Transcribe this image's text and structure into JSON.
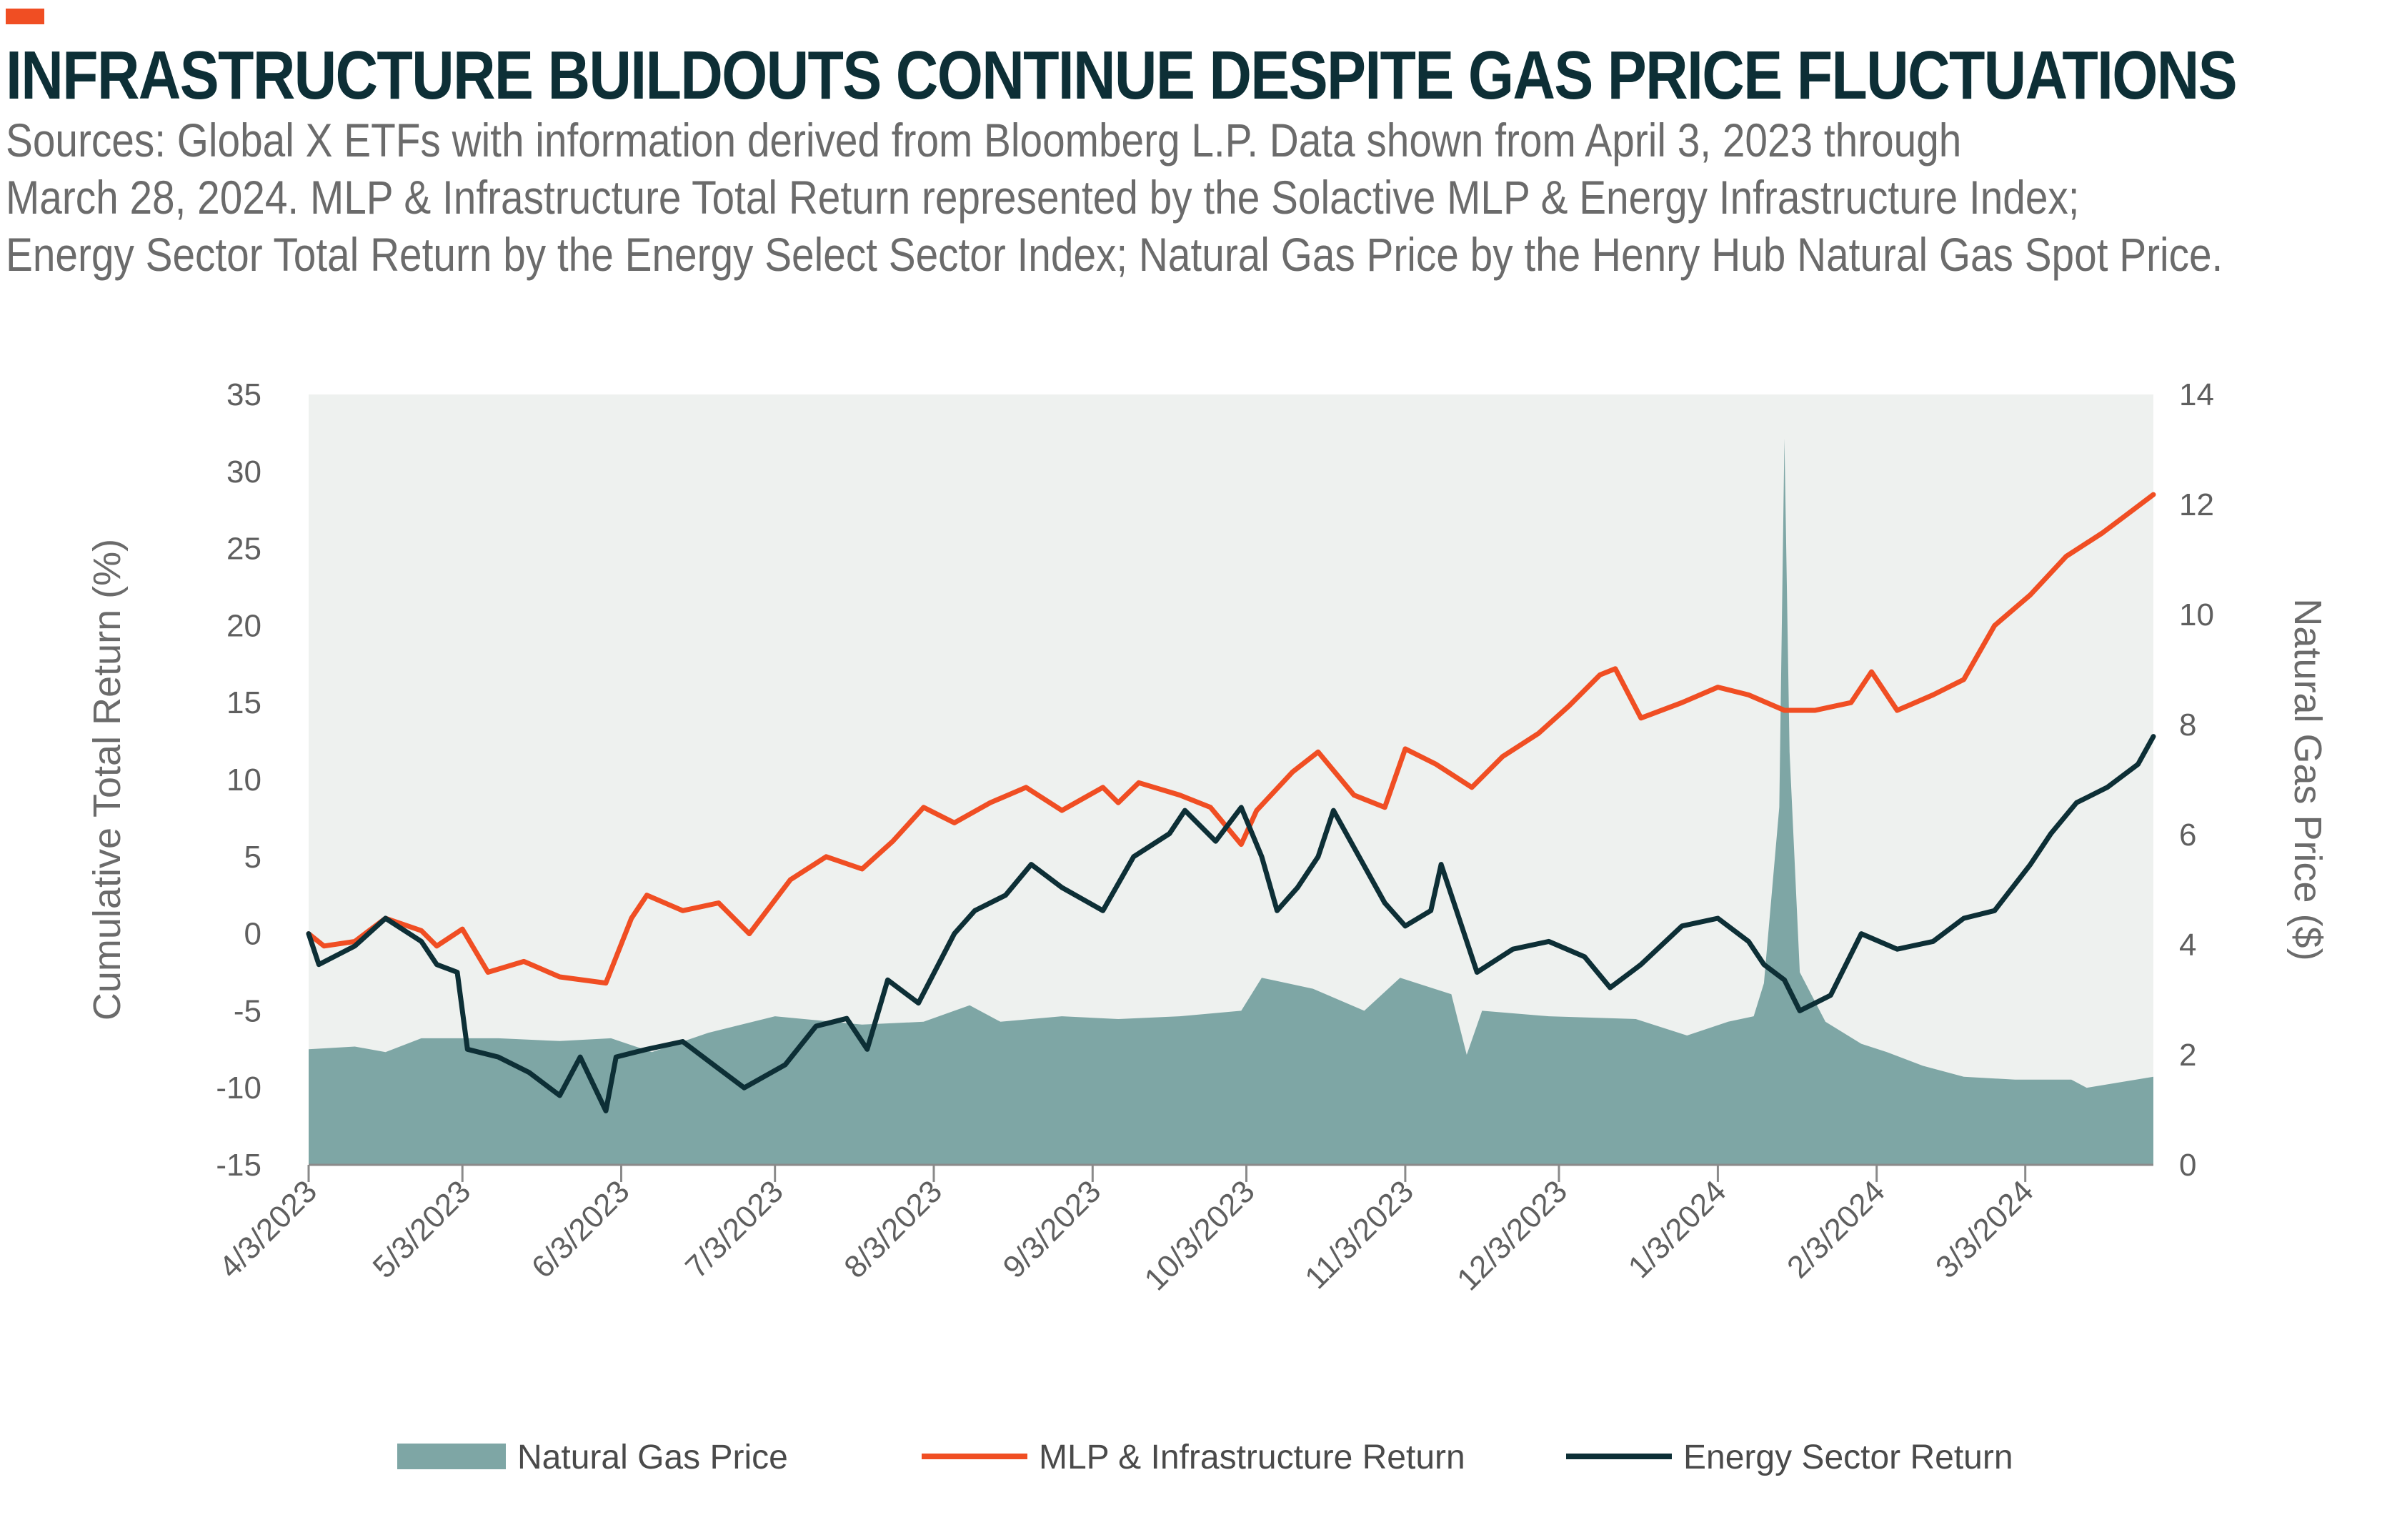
{
  "header": {
    "title": "INFRASTRUCTURE BUILDOUTS CONTINUE DESPITE GAS PRICE FLUCTUATIONS",
    "subtitle_lines": [
      "Sources: Global X ETFs with information derived from Bloomberg L.P. Data shown from April 3, 2023 through",
      "March 28, 2024. MLP & Infrastructure Total Return represented by the Solactive MLP & Energy Infrastructure Index;",
      "Energy Sector Total Return by the Energy Select Sector Index; Natural Gas Price by the Henry Hub Natural Gas Spot Price."
    ]
  },
  "colors": {
    "accent": "#f04e23",
    "title": "#0d2f36",
    "plot_background": "#eef1ef",
    "natural_gas": "#7ea6a5",
    "mlp": "#f04e23",
    "energy": "#0d2f36"
  },
  "chart_data": {
    "type": "line",
    "title": "INFRASTRUCTURE BUILDOUTS CONTINUE DESPITE GAS PRICE FLUCTUATIONS",
    "xlabel": "",
    "ylabel": "Cumulative Total Return (%)",
    "y2label": "Natural Gas Price ($)",
    "ylim": [
      -15,
      35
    ],
    "y2lim": [
      0,
      14
    ],
    "yticks": [
      "35",
      "30",
      "25",
      "20",
      "15",
      "10",
      "5",
      "0",
      "-5",
      "-10",
      "-15"
    ],
    "y2ticks": [
      "14",
      "12",
      "10",
      "8",
      "6",
      "4",
      "2",
      "0"
    ],
    "xticks": [
      "4/3/2023",
      "5/3/2023",
      "6/3/2023",
      "7/3/2023",
      "8/3/2023",
      "9/3/2023",
      "10/3/2023",
      "11/3/2023",
      "12/3/2023",
      "1/3/2024",
      "2/3/2024",
      "3/3/2024"
    ],
    "xlim": [
      "2023-04-03",
      "2024-03-28"
    ],
    "grid": false,
    "legend_position": "bottom",
    "series": [
      {
        "name": "Natural Gas Price",
        "type": "area",
        "axis": "right",
        "points": [
          [
            "2023-04-03",
            2.1
          ],
          [
            "2023-04-12",
            2.15
          ],
          [
            "2023-04-18",
            2.05
          ],
          [
            "2023-04-25",
            2.3
          ],
          [
            "2023-05-10",
            2.3
          ],
          [
            "2023-05-22",
            2.25
          ],
          [
            "2023-06-01",
            2.3
          ],
          [
            "2023-06-09",
            2.05
          ],
          [
            "2023-06-20",
            2.4
          ],
          [
            "2023-07-03",
            2.7
          ],
          [
            "2023-07-20",
            2.55
          ],
          [
            "2023-08-01",
            2.6
          ],
          [
            "2023-08-10",
            2.9
          ],
          [
            "2023-08-16",
            2.6
          ],
          [
            "2023-08-28",
            2.7
          ],
          [
            "2023-09-08",
            2.65
          ],
          [
            "2023-09-20",
            2.7
          ],
          [
            "2023-10-02",
            2.8
          ],
          [
            "2023-10-06",
            3.4
          ],
          [
            "2023-10-16",
            3.2
          ],
          [
            "2023-10-26",
            2.8
          ],
          [
            "2023-11-02",
            3.4
          ],
          [
            "2023-11-12",
            3.1
          ],
          [
            "2023-11-15",
            2.0
          ],
          [
            "2023-11-18",
            2.8
          ],
          [
            "2023-12-01",
            2.7
          ],
          [
            "2023-12-18",
            2.65
          ],
          [
            "2023-12-28",
            2.35
          ],
          [
            "2024-01-05",
            2.6
          ],
          [
            "2024-01-10",
            2.7
          ],
          [
            "2024-01-12",
            3.3
          ],
          [
            "2024-01-15",
            6.5
          ],
          [
            "2024-01-16",
            13.2
          ],
          [
            "2024-01-17",
            7.5
          ],
          [
            "2024-01-19",
            3.5
          ],
          [
            "2024-01-24",
            2.6
          ],
          [
            "2024-01-31",
            2.2
          ],
          [
            "2024-02-05",
            2.05
          ],
          [
            "2024-02-12",
            1.8
          ],
          [
            "2024-02-20",
            1.6
          ],
          [
            "2024-03-01",
            1.55
          ],
          [
            "2024-03-12",
            1.55
          ],
          [
            "2024-03-15",
            1.4
          ],
          [
            "2024-03-28",
            1.6
          ]
        ]
      },
      {
        "name": "MLP & Infrastructure Return",
        "type": "line",
        "axis": "left",
        "points": [
          [
            "2023-04-03",
            0
          ],
          [
            "2023-04-06",
            -0.8
          ],
          [
            "2023-04-12",
            -0.5
          ],
          [
            "2023-04-18",
            1.0
          ],
          [
            "2023-04-25",
            0.2
          ],
          [
            "2023-04-28",
            -0.8
          ],
          [
            "2023-05-03",
            0.3
          ],
          [
            "2023-05-08",
            -2.5
          ],
          [
            "2023-05-15",
            -1.8
          ],
          [
            "2023-05-22",
            -2.8
          ],
          [
            "2023-05-31",
            -3.2
          ],
          [
            "2023-06-05",
            1.0
          ],
          [
            "2023-06-08",
            2.5
          ],
          [
            "2023-06-15",
            1.5
          ],
          [
            "2023-06-22",
            2.0
          ],
          [
            "2023-06-28",
            0
          ],
          [
            "2023-07-06",
            3.5
          ],
          [
            "2023-07-13",
            5.0
          ],
          [
            "2023-07-20",
            4.2
          ],
          [
            "2023-07-26",
            6.0
          ],
          [
            "2023-08-01",
            8.2
          ],
          [
            "2023-08-07",
            7.2
          ],
          [
            "2023-08-14",
            8.5
          ],
          [
            "2023-08-21",
            9.5
          ],
          [
            "2023-08-28",
            8.0
          ],
          [
            "2023-09-05",
            9.5
          ],
          [
            "2023-09-08",
            8.5
          ],
          [
            "2023-09-12",
            9.8
          ],
          [
            "2023-09-20",
            9.0
          ],
          [
            "2023-09-26",
            8.2
          ],
          [
            "2023-10-02",
            5.8
          ],
          [
            "2023-10-05",
            8.0
          ],
          [
            "2023-10-12",
            10.5
          ],
          [
            "2023-10-17",
            11.8
          ],
          [
            "2023-10-24",
            9.0
          ],
          [
            "2023-10-30",
            8.2
          ],
          [
            "2023-11-03",
            12.0
          ],
          [
            "2023-11-09",
            11.0
          ],
          [
            "2023-11-16",
            9.5
          ],
          [
            "2023-11-22",
            11.5
          ],
          [
            "2023-11-29",
            13.0
          ],
          [
            "2023-12-05",
            14.8
          ],
          [
            "2023-12-11",
            16.8
          ],
          [
            "2023-12-14",
            17.2
          ],
          [
            "2023-12-19",
            14.0
          ],
          [
            "2023-12-27",
            15.0
          ],
          [
            "2024-01-03",
            16.0
          ],
          [
            "2024-01-09",
            15.5
          ],
          [
            "2024-01-16",
            14.5
          ],
          [
            "2024-01-22",
            14.5
          ],
          [
            "2024-01-29",
            15.0
          ],
          [
            "2024-02-02",
            17.0
          ],
          [
            "2024-02-07",
            14.5
          ],
          [
            "2024-02-14",
            15.5
          ],
          [
            "2024-02-20",
            16.5
          ],
          [
            "2024-02-26",
            20.0
          ],
          [
            "2024-03-04",
            22.0
          ],
          [
            "2024-03-11",
            24.5
          ],
          [
            "2024-03-18",
            26.0
          ],
          [
            "2024-03-22",
            27.0
          ],
          [
            "2024-03-28",
            28.5
          ]
        ]
      },
      {
        "name": "Energy Sector Return",
        "type": "line",
        "axis": "left",
        "points": [
          [
            "2023-04-03",
            0
          ],
          [
            "2023-04-05",
            -2.0
          ],
          [
            "2023-04-12",
            -0.8
          ],
          [
            "2023-04-18",
            1.0
          ],
          [
            "2023-04-25",
            -0.5
          ],
          [
            "2023-04-28",
            -2.0
          ],
          [
            "2023-05-02",
            -2.5
          ],
          [
            "2023-05-04",
            -7.5
          ],
          [
            "2023-05-10",
            -8.0
          ],
          [
            "2023-05-16",
            -9.0
          ],
          [
            "2023-05-22",
            -10.5
          ],
          [
            "2023-05-26",
            -8.0
          ],
          [
            "2023-05-31",
            -11.5
          ],
          [
            "2023-06-02",
            -8.0
          ],
          [
            "2023-06-08",
            -7.5
          ],
          [
            "2023-06-15",
            -7.0
          ],
          [
            "2023-06-21",
            -8.5
          ],
          [
            "2023-06-27",
            -10.0
          ],
          [
            "2023-07-05",
            -8.5
          ],
          [
            "2023-07-11",
            -6.0
          ],
          [
            "2023-07-17",
            -5.5
          ],
          [
            "2023-07-21",
            -7.5
          ],
          [
            "2023-07-25",
            -3.0
          ],
          [
            "2023-07-31",
            -4.5
          ],
          [
            "2023-08-07",
            0
          ],
          [
            "2023-08-11",
            1.5
          ],
          [
            "2023-08-17",
            2.5
          ],
          [
            "2023-08-22",
            4.5
          ],
          [
            "2023-08-28",
            3.0
          ],
          [
            "2023-09-05",
            1.5
          ],
          [
            "2023-09-11",
            5.0
          ],
          [
            "2023-09-18",
            6.5
          ],
          [
            "2023-09-21",
            8.0
          ],
          [
            "2023-09-27",
            6.0
          ],
          [
            "2023-10-02",
            8.2
          ],
          [
            "2023-10-06",
            5.0
          ],
          [
            "2023-10-09",
            1.5
          ],
          [
            "2023-10-13",
            3.0
          ],
          [
            "2023-10-17",
            5.0
          ],
          [
            "2023-10-20",
            8.0
          ],
          [
            "2023-10-25",
            5.0
          ],
          [
            "2023-10-30",
            2.0
          ],
          [
            "2023-11-03",
            0.5
          ],
          [
            "2023-11-08",
            1.5
          ],
          [
            "2023-11-10",
            4.5
          ],
          [
            "2023-11-14",
            0.5
          ],
          [
            "2023-11-17",
            -2.5
          ],
          [
            "2023-11-24",
            -1.0
          ],
          [
            "2023-12-01",
            -0.5
          ],
          [
            "2023-12-08",
            -1.5
          ],
          [
            "2023-12-13",
            -3.5
          ],
          [
            "2023-12-19",
            -2.0
          ],
          [
            "2023-12-27",
            0.5
          ],
          [
            "2024-01-03",
            1.0
          ],
          [
            "2024-01-09",
            -0.5
          ],
          [
            "2024-01-12",
            -2.0
          ],
          [
            "2024-01-16",
            -3.0
          ],
          [
            "2024-01-19",
            -5.0
          ],
          [
            "2024-01-25",
            -4.0
          ],
          [
            "2024-01-31",
            0
          ],
          [
            "2024-02-07",
            -1.0
          ],
          [
            "2024-02-14",
            -0.5
          ],
          [
            "2024-02-20",
            1.0
          ],
          [
            "2024-02-26",
            1.5
          ],
          [
            "2024-03-04",
            4.5
          ],
          [
            "2024-03-08",
            6.5
          ],
          [
            "2024-03-13",
            8.5
          ],
          [
            "2024-03-19",
            9.5
          ],
          [
            "2024-03-25",
            11.0
          ],
          [
            "2024-03-28",
            12.8
          ]
        ]
      }
    ]
  },
  "legend": {
    "items": [
      {
        "label": "Natural Gas Price"
      },
      {
        "label": "MLP & Infrastructure Return"
      },
      {
        "label": "Energy Sector Return"
      }
    ]
  }
}
